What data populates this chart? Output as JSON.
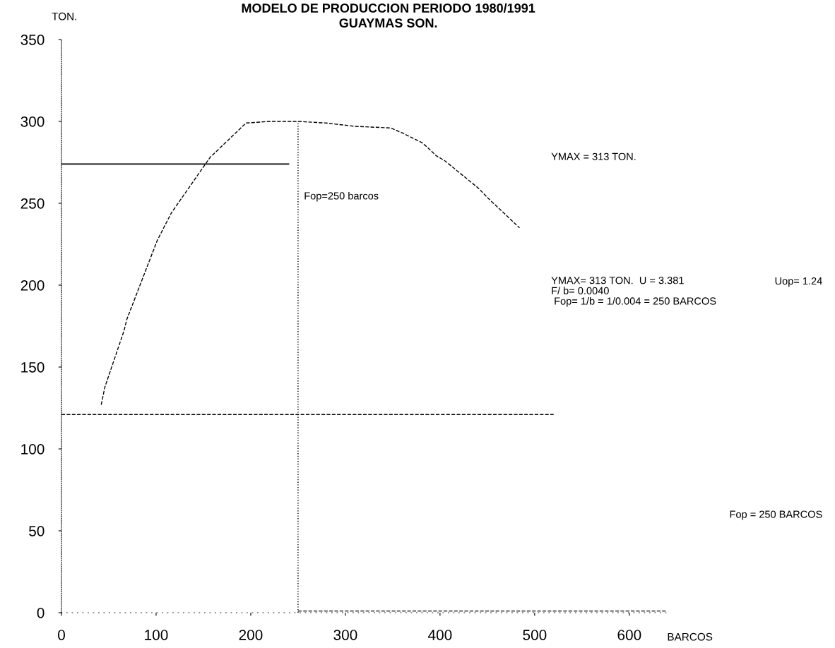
{
  "chart_data": {
    "type": "line",
    "title": "MODELO DE PRODUCCION PERIODO 1980/1991",
    "subtitle": "GUAYMAS SON.",
    "xlabel": "BARCOS",
    "ylabel": "TON.",
    "xlim": [
      0,
      640
    ],
    "ylim": [
      0,
      350
    ],
    "xticks": [
      0,
      100,
      200,
      300,
      400,
      500,
      600
    ],
    "yticks": [
      0,
      50,
      100,
      150,
      200,
      250,
      300,
      350
    ],
    "grid": false,
    "legend": false,
    "marker": "none",
    "series": [
      {
        "color": "#000000",
        "line_style": "dashed",
        "x": [
          42,
          46,
          66,
          69,
          101,
          108,
          116,
          157,
          195,
          220,
          250,
          280,
          310,
          348,
          360,
          381,
          387,
          396,
          405,
          441,
          451,
          484
        ],
        "values": [
          127,
          138,
          172,
          179,
          227,
          235,
          244,
          278,
          299,
          300,
          300,
          299,
          297,
          296,
          293,
          287,
          284,
          279,
          276,
          259,
          253,
          235
        ]
      },
      {
        "color": "#000000",
        "line_style": "solid",
        "x": [
          0,
          240
        ],
        "values": [
          274,
          274
        ]
      },
      {
        "color": "#000000",
        "line_style": "dashed",
        "x": [
          0,
          520
        ],
        "values": [
          121,
          121
        ]
      },
      {
        "color": "#000000",
        "line_style": "dotted",
        "x": [
          250,
          250
        ],
        "values": [
          0,
          300
        ]
      },
      {
        "color": "#000000",
        "line_style": "dashed",
        "x": [
          250,
          640
        ],
        "values": [
          1,
          1
        ]
      }
    ],
    "annotations": [
      {
        "text": "Fop=250 barcos",
        "x": 250,
        "y": 254
      },
      "YMAX = 313 TON.",
      "YMAX= 313 TON.  U = 3.381\nF/ b= 0.0040\n Fop= 1/b = 1/0.004 = 250 BARCOS",
      "Uop= 1.24",
      "Fop = 250 BARCOS"
    ]
  }
}
